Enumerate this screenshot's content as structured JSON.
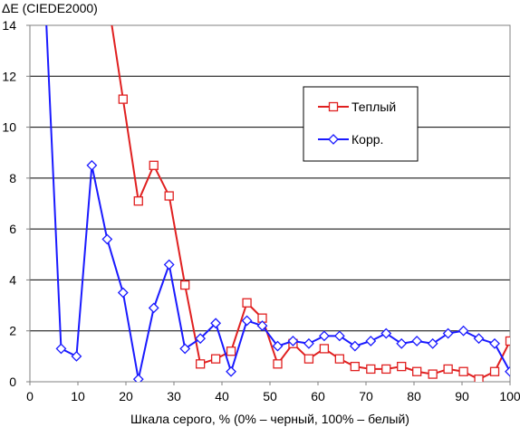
{
  "chart_data": {
    "type": "line",
    "ylabel": "ΔE (CIEDE2000)",
    "xlabel": "Шкала серого, % (0% – черный, 100% – белый)",
    "xlim": [
      0,
      100
    ],
    "ylim": [
      0,
      14
    ],
    "xticks": [
      "0",
      "10",
      "20",
      "30",
      "40",
      "50",
      "60",
      "70",
      "80",
      "90",
      "100"
    ],
    "yticks": [
      "0",
      "2",
      "4",
      "6",
      "8",
      "10",
      "12",
      "14"
    ],
    "grid": "horizontal",
    "legend_position": "right",
    "series": [
      {
        "name": "Теплый",
        "color": "#e02020",
        "marker": "square",
        "x": [
          16.1,
          19.4,
          22.6,
          25.8,
          29.0,
          32.3,
          35.5,
          38.7,
          41.9,
          45.2,
          48.4,
          51.6,
          54.8,
          58.1,
          61.3,
          64.5,
          67.7,
          71.0,
          74.2,
          77.4,
          80.6,
          83.9,
          87.1,
          90.3,
          93.5,
          96.8,
          100.0
        ],
        "y": [
          15.2,
          11.1,
          7.1,
          8.5,
          7.3,
          3.8,
          0.7,
          0.9,
          1.2,
          3.1,
          2.5,
          0.7,
          1.5,
          0.9,
          1.3,
          0.9,
          0.6,
          0.5,
          0.5,
          0.6,
          0.4,
          0.3,
          0.5,
          0.4,
          0.1,
          0.4,
          1.6
        ]
      },
      {
        "name": "Корр.",
        "color": "#1a1aff",
        "marker": "diamond",
        "x": [
          3.2,
          6.5,
          9.7,
          12.9,
          16.1,
          19.4,
          22.6,
          25.8,
          29.0,
          32.3,
          35.5,
          38.7,
          41.9,
          45.2,
          48.4,
          51.6,
          54.8,
          58.1,
          61.3,
          64.5,
          67.7,
          71.0,
          74.2,
          77.4,
          80.6,
          83.9,
          87.1,
          90.3,
          93.5,
          96.8,
          100.0
        ],
        "y": [
          15.0,
          1.3,
          1.0,
          8.5,
          5.6,
          3.5,
          0.1,
          2.9,
          4.6,
          1.3,
          1.7,
          2.3,
          0.4,
          2.4,
          2.2,
          1.4,
          1.6,
          1.5,
          1.8,
          1.8,
          1.4,
          1.6,
          1.9,
          1.5,
          1.6,
          1.5,
          1.9,
          2.0,
          1.7,
          1.5,
          0.4
        ]
      }
    ]
  }
}
